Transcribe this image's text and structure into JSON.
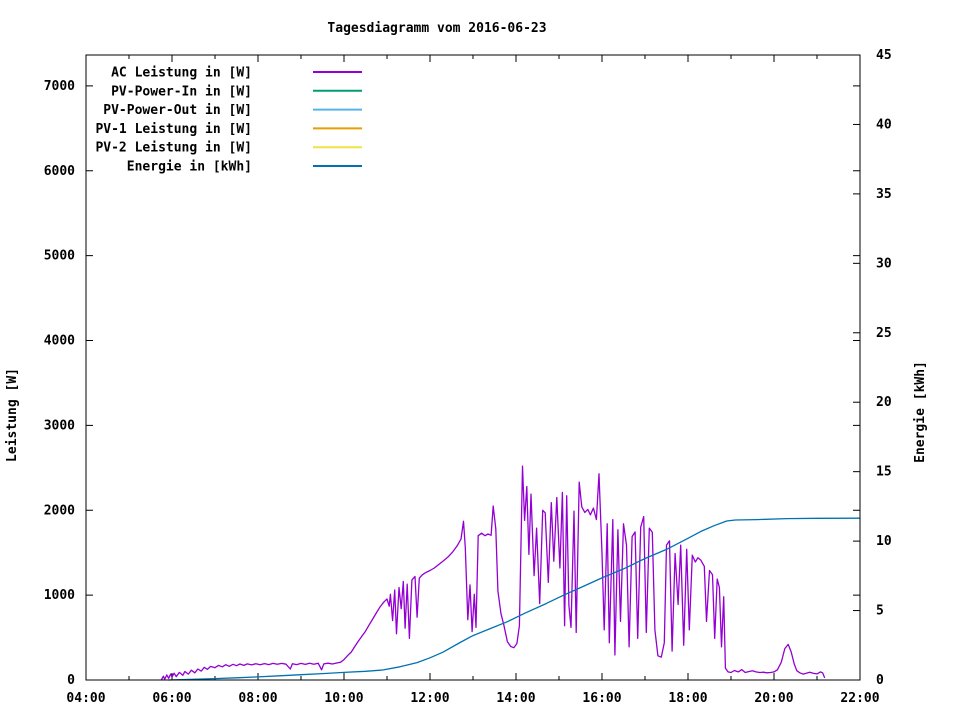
{
  "chart_data": {
    "type": "line",
    "title": "Tagesdiagramm vom 2016-06-23",
    "grid": false,
    "background_color": "#ffffff",
    "border_color": "#000000",
    "legend_position": "top-left-inside",
    "x_axis": {
      "unit": "time",
      "min_hour": 4,
      "max_hour": 22,
      "major_tick_step_hours": 2,
      "minor_tick_step_hours": 1,
      "tick_labels": [
        "04:00",
        "06:00",
        "08:00",
        "10:00",
        "12:00",
        "14:00",
        "16:00",
        "18:00",
        "20:00",
        "22:00"
      ]
    },
    "y_left": {
      "label": "Leistung [W]",
      "min": 0,
      "max": 7364,
      "tick_step": 1000,
      "tick_labels": [
        "0",
        "1000",
        "2000",
        "3000",
        "4000",
        "5000",
        "6000",
        "7000"
      ]
    },
    "y_right": {
      "label": "Energie [kWh]",
      "min": 0,
      "max": 45,
      "tick_step": 5,
      "tick_labels": [
        "0",
        "5",
        "10",
        "15",
        "20",
        "25",
        "30",
        "35",
        "40",
        "45"
      ]
    },
    "series": [
      {
        "name": "AC Leistung in [W]",
        "color": "#9400d3",
        "axis": "left",
        "points": [
          [
            5.75,
            0
          ],
          [
            5.8,
            45
          ],
          [
            5.83,
            10
          ],
          [
            5.88,
            60
          ],
          [
            5.92,
            20
          ],
          [
            5.97,
            70
          ],
          [
            6.0,
            35
          ],
          [
            6.05,
            80
          ],
          [
            6.1,
            40
          ],
          [
            6.17,
            90
          ],
          [
            6.25,
            55
          ],
          [
            6.3,
            100
          ],
          [
            6.38,
            70
          ],
          [
            6.45,
            115
          ],
          [
            6.53,
            85
          ],
          [
            6.6,
            130
          ],
          [
            6.68,
            105
          ],
          [
            6.75,
            150
          ],
          [
            6.82,
            125
          ],
          [
            6.9,
            160
          ],
          [
            7.0,
            145
          ],
          [
            7.08,
            172
          ],
          [
            7.17,
            155
          ],
          [
            7.25,
            180
          ],
          [
            7.33,
            162
          ],
          [
            7.42,
            185
          ],
          [
            7.5,
            168
          ],
          [
            7.58,
            188
          ],
          [
            7.67,
            172
          ],
          [
            7.75,
            190
          ],
          [
            7.85,
            178
          ],
          [
            7.95,
            192
          ],
          [
            8.05,
            180
          ],
          [
            8.15,
            193
          ],
          [
            8.25,
            182
          ],
          [
            8.35,
            195
          ],
          [
            8.45,
            185
          ],
          [
            8.55,
            196
          ],
          [
            8.65,
            186
          ],
          [
            8.75,
            130
          ],
          [
            8.8,
            192
          ],
          [
            8.9,
            182
          ],
          [
            9.0,
            196
          ],
          [
            9.1,
            184
          ],
          [
            9.2,
            198
          ],
          [
            9.3,
            186
          ],
          [
            9.4,
            198
          ],
          [
            9.48,
            120
          ],
          [
            9.53,
            190
          ],
          [
            9.63,
            198
          ],
          [
            9.73,
            188
          ],
          [
            9.83,
            200
          ],
          [
            9.92,
            210
          ],
          [
            10.0,
            240
          ],
          [
            10.08,
            285
          ],
          [
            10.17,
            330
          ],
          [
            10.25,
            395
          ],
          [
            10.33,
            455
          ],
          [
            10.42,
            520
          ],
          [
            10.5,
            575
          ],
          [
            10.58,
            645
          ],
          [
            10.67,
            720
          ],
          [
            10.75,
            790
          ],
          [
            10.83,
            855
          ],
          [
            10.92,
            915
          ],
          [
            11.0,
            955
          ],
          [
            11.05,
            870
          ],
          [
            11.08,
            1010
          ],
          [
            11.13,
            700
          ],
          [
            11.18,
            1060
          ],
          [
            11.22,
            545
          ],
          [
            11.28,
            1090
          ],
          [
            11.33,
            840
          ],
          [
            11.38,
            1160
          ],
          [
            11.42,
            610
          ],
          [
            11.47,
            1130
          ],
          [
            11.52,
            490
          ],
          [
            11.58,
            1180
          ],
          [
            11.65,
            1220
          ],
          [
            11.7,
            740
          ],
          [
            11.75,
            1200
          ],
          [
            11.82,
            1240
          ],
          [
            11.9,
            1265
          ],
          [
            12.0,
            1290
          ],
          [
            12.1,
            1320
          ],
          [
            12.2,
            1360
          ],
          [
            12.3,
            1400
          ],
          [
            12.42,
            1450
          ],
          [
            12.53,
            1510
          ],
          [
            12.63,
            1580
          ],
          [
            12.72,
            1660
          ],
          [
            12.78,
            1870
          ],
          [
            12.82,
            1560
          ],
          [
            12.88,
            710
          ],
          [
            12.93,
            1120
          ],
          [
            12.98,
            570
          ],
          [
            13.03,
            1010
          ],
          [
            13.07,
            620
          ],
          [
            13.12,
            1700
          ],
          [
            13.2,
            1730
          ],
          [
            13.28,
            1700
          ],
          [
            13.35,
            1720
          ],
          [
            13.42,
            1705
          ],
          [
            13.47,
            2050
          ],
          [
            13.53,
            1780
          ],
          [
            13.58,
            1050
          ],
          [
            13.65,
            780
          ],
          [
            13.72,
            640
          ],
          [
            13.8,
            450
          ],
          [
            13.88,
            395
          ],
          [
            13.95,
            380
          ],
          [
            14.02,
            430
          ],
          [
            14.08,
            640
          ],
          [
            14.15,
            2520
          ],
          [
            14.2,
            1880
          ],
          [
            14.25,
            2280
          ],
          [
            14.3,
            1480
          ],
          [
            14.35,
            2190
          ],
          [
            14.42,
            1230
          ],
          [
            14.48,
            1790
          ],
          [
            14.55,
            900
          ],
          [
            14.62,
            2000
          ],
          [
            14.68,
            1970
          ],
          [
            14.75,
            1150
          ],
          [
            14.82,
            2090
          ],
          [
            14.88,
            1400
          ],
          [
            14.95,
            2150
          ],
          [
            15.02,
            1320
          ],
          [
            15.08,
            2210
          ],
          [
            15.13,
            640
          ],
          [
            15.18,
            2170
          ],
          [
            15.23,
            880
          ],
          [
            15.28,
            620
          ],
          [
            15.35,
            1990
          ],
          [
            15.4,
            560
          ],
          [
            15.47,
            2330
          ],
          [
            15.53,
            2040
          ],
          [
            15.6,
            1975
          ],
          [
            15.67,
            2010
          ],
          [
            15.73,
            1945
          ],
          [
            15.8,
            2025
          ],
          [
            15.87,
            1890
          ],
          [
            15.93,
            2430
          ],
          [
            16.0,
            1490
          ],
          [
            16.05,
            590
          ],
          [
            16.12,
            1840
          ],
          [
            16.17,
            440
          ],
          [
            16.25,
            1890
          ],
          [
            16.3,
            295
          ],
          [
            16.37,
            1770
          ],
          [
            16.43,
            690
          ],
          [
            16.5,
            1840
          ],
          [
            16.57,
            1590
          ],
          [
            16.63,
            390
          ],
          [
            16.7,
            1690
          ],
          [
            16.77,
            1745
          ],
          [
            16.83,
            490
          ],
          [
            16.9,
            1800
          ],
          [
            16.97,
            1925
          ],
          [
            17.03,
            560
          ],
          [
            17.1,
            1790
          ],
          [
            17.17,
            1740
          ],
          [
            17.23,
            590
          ],
          [
            17.3,
            285
          ],
          [
            17.38,
            270
          ],
          [
            17.45,
            440
          ],
          [
            17.5,
            1590
          ],
          [
            17.57,
            1640
          ],
          [
            17.63,
            340
          ],
          [
            17.7,
            1490
          ],
          [
            17.77,
            890
          ],
          [
            17.83,
            1590
          ],
          [
            17.9,
            410
          ],
          [
            17.97,
            1540
          ],
          [
            18.03,
            590
          ],
          [
            18.1,
            1470
          ],
          [
            18.17,
            1390
          ],
          [
            18.23,
            1440
          ],
          [
            18.3,
            1410
          ],
          [
            18.38,
            1340
          ],
          [
            18.43,
            690
          ],
          [
            18.5,
            1290
          ],
          [
            18.57,
            1240
          ],
          [
            18.62,
            490
          ],
          [
            18.68,
            1190
          ],
          [
            18.73,
            1090
          ],
          [
            18.78,
            390
          ],
          [
            18.83,
            980
          ],
          [
            18.87,
            140
          ],
          [
            18.93,
            95
          ],
          [
            19.0,
            88
          ],
          [
            19.08,
            112
          ],
          [
            19.17,
            95
          ],
          [
            19.25,
            122
          ],
          [
            19.33,
            88
          ],
          [
            19.42,
            100
          ],
          [
            19.5,
            108
          ],
          [
            19.58,
            95
          ],
          [
            19.67,
            88
          ],
          [
            19.75,
            92
          ],
          [
            19.83,
            85
          ],
          [
            19.92,
            88
          ],
          [
            20.0,
            95
          ],
          [
            20.08,
            120
          ],
          [
            20.17,
            210
          ],
          [
            20.25,
            370
          ],
          [
            20.33,
            420
          ],
          [
            20.4,
            330
          ],
          [
            20.47,
            190
          ],
          [
            20.53,
            110
          ],
          [
            20.6,
            85
          ],
          [
            20.68,
            70
          ],
          [
            20.75,
            80
          ],
          [
            20.83,
            92
          ],
          [
            20.92,
            78
          ],
          [
            21.0,
            72
          ],
          [
            21.08,
            95
          ],
          [
            21.13,
            85
          ],
          [
            21.18,
            25
          ]
        ]
      },
      {
        "name": "PV-Power-In in [W]",
        "color": "#009e73",
        "axis": "left",
        "points": []
      },
      {
        "name": "PV-Power-Out in [W]",
        "color": "#56b4e9",
        "axis": "left",
        "points": []
      },
      {
        "name": "PV-1 Leistung in [W]",
        "color": "#e69f00",
        "axis": "left",
        "points": []
      },
      {
        "name": "PV-2 Leistung in [W]",
        "color": "#f0e442",
        "axis": "left",
        "points": []
      },
      {
        "name": "Energie in [kWh]",
        "color": "#0072b2",
        "axis": "right",
        "points": [
          [
            5.9,
            0
          ],
          [
            6.5,
            0.05
          ],
          [
            7.0,
            0.1
          ],
          [
            7.5,
            0.16
          ],
          [
            8.0,
            0.22
          ],
          [
            8.5,
            0.3
          ],
          [
            9.0,
            0.38
          ],
          [
            9.5,
            0.46
          ],
          [
            10.0,
            0.55
          ],
          [
            10.5,
            0.63
          ],
          [
            10.9,
            0.72
          ],
          [
            11.3,
            0.95
          ],
          [
            11.7,
            1.25
          ],
          [
            12.0,
            1.6
          ],
          [
            12.3,
            2.0
          ],
          [
            12.7,
            2.7
          ],
          [
            13.0,
            3.2
          ],
          [
            13.4,
            3.7
          ],
          [
            13.8,
            4.2
          ],
          [
            14.2,
            4.8
          ],
          [
            14.7,
            5.5
          ],
          [
            15.1,
            6.1
          ],
          [
            15.5,
            6.65
          ],
          [
            16.0,
            7.35
          ],
          [
            16.5,
            8.0
          ],
          [
            17.0,
            8.75
          ],
          [
            17.5,
            9.4
          ],
          [
            18.0,
            10.2
          ],
          [
            18.3,
            10.7
          ],
          [
            18.6,
            11.1
          ],
          [
            18.9,
            11.45
          ],
          [
            19.1,
            11.52
          ],
          [
            19.6,
            11.55
          ],
          [
            20.3,
            11.62
          ],
          [
            21.0,
            11.64
          ],
          [
            22.0,
            11.65
          ]
        ]
      }
    ]
  }
}
